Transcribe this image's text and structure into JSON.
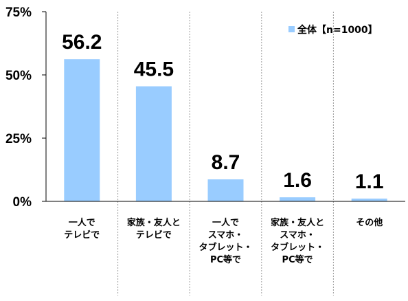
{
  "chart_data": {
    "type": "bar",
    "categories": [
      [
        "一人で",
        "テレビで"
      ],
      [
        "家族・友人と",
        "テレビで"
      ],
      [
        "一人で",
        "スマホ・",
        "タブレット・",
        "PC等で"
      ],
      [
        "家族・友人と",
        "スマホ・",
        "タブレット・",
        "PC等で"
      ],
      [
        "その他"
      ]
    ],
    "series": [
      {
        "name": "全体【n=1000】",
        "values": [
          56.2,
          45.5,
          8.7,
          1.6,
          1.1
        ]
      }
    ],
    "value_labels": [
      "56.2",
      "45.5",
      "8.7",
      "1.6",
      "1.1"
    ],
    "yticks": [
      "0%",
      "25%",
      "50%",
      "75%"
    ],
    "ylim": [
      0,
      75
    ],
    "legend_position": "top-right",
    "colors": {
      "bar": "#99ccff",
      "axis": "#000000",
      "separator": "#999999"
    }
  }
}
